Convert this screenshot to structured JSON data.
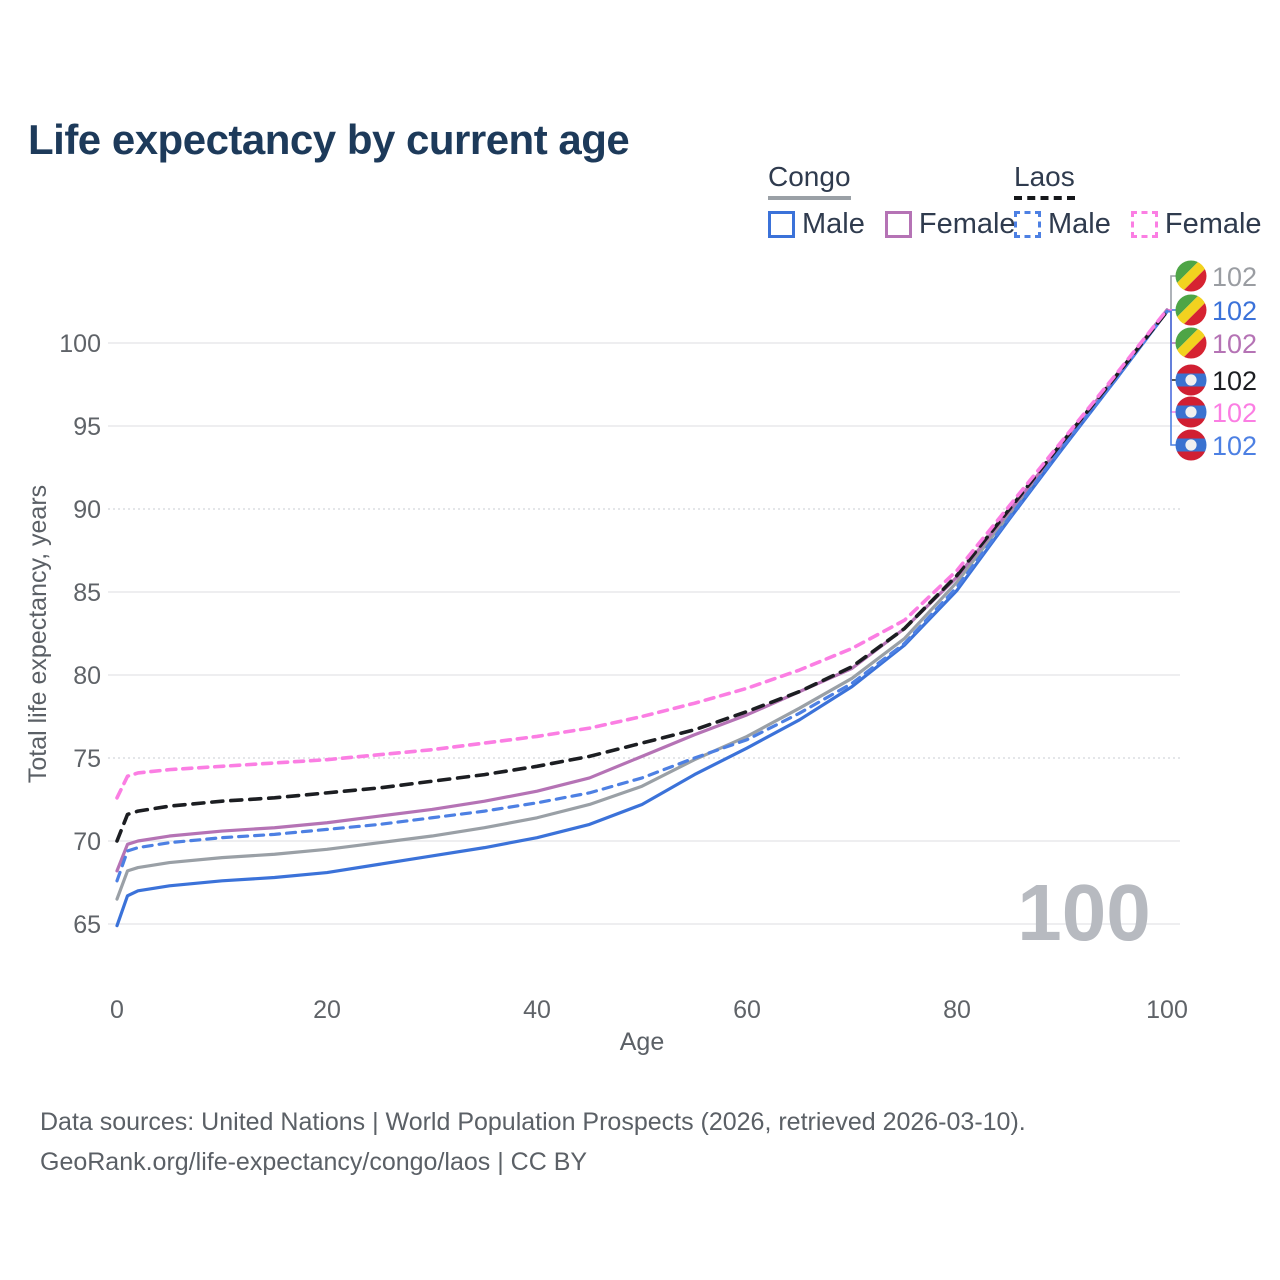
{
  "title": "Life expectancy by current age",
  "legend": {
    "groups": [
      {
        "label": "Congo",
        "line_style": "solid",
        "underline_color": "#9aa0a6",
        "items": [
          {
            "label": "Male",
            "color": "#3b72d9",
            "dashed": false
          },
          {
            "label": "Female",
            "color": "#b573b5",
            "dashed": false
          }
        ]
      },
      {
        "label": "Laos",
        "line_style": "dashed",
        "underline_color": "#15171a",
        "items": [
          {
            "label": "Male",
            "color": "#4d80e3",
            "dashed": true
          },
          {
            "label": "Female",
            "color": "#fb7ee3",
            "dashed": true
          }
        ]
      }
    ]
  },
  "watermark_age": "100",
  "footer": {
    "line1": "Data sources: United Nations | World Population Prospects (2026, retrieved 2026-03-10).",
    "line2": "GeoRank.org/life-expectancy/congo/laos | CC BY"
  },
  "flags": {
    "congo": {
      "green": "#4ea546",
      "yellow": "#f2d21f",
      "red": "#d62331"
    },
    "laos": {
      "red": "#d01f32",
      "blue": "#3a72d0",
      "white": "#f0f0f0"
    }
  },
  "chart_data": {
    "type": "line",
    "title": "Life expectancy by current age",
    "xlabel": "Age",
    "ylabel": "Total life expectancy, years",
    "xlim": [
      0,
      100
    ],
    "ylim": [
      63.5,
      103.5
    ],
    "xticks": [
      0,
      20,
      40,
      60,
      80,
      100
    ],
    "yticks": [
      65,
      70,
      75,
      80,
      85,
      90,
      95,
      100
    ],
    "grid": "horizontal",
    "legend_position": "top-right",
    "ages": [
      0,
      1,
      2,
      5,
      10,
      15,
      20,
      25,
      30,
      35,
      40,
      45,
      50,
      55,
      60,
      65,
      70,
      75,
      80,
      85,
      90,
      95,
      100
    ],
    "series": [
      {
        "name": "Congo Both sexes",
        "country": "Congo",
        "sex": "Both",
        "color": "#9aa0a6",
        "dashed": false,
        "end_label": "102",
        "end_label_color": "#9a9da2",
        "values": [
          66.5,
          68.2,
          68.4,
          68.7,
          69.0,
          69.2,
          69.5,
          69.9,
          70.3,
          70.8,
          71.4,
          72.2,
          73.3,
          74.9,
          76.3,
          78.0,
          79.8,
          82.2,
          85.6,
          89.7,
          93.8,
          97.8,
          101.9
        ]
      },
      {
        "name": "Congo Male",
        "country": "Congo",
        "sex": "Male",
        "color": "#3b72d9",
        "dashed": false,
        "end_label": "102",
        "end_label_color": "#3b72d9",
        "values": [
          64.9,
          66.7,
          67.0,
          67.3,
          67.6,
          67.8,
          68.1,
          68.6,
          69.1,
          69.6,
          70.2,
          71.0,
          72.2,
          74.0,
          75.6,
          77.3,
          79.3,
          81.8,
          85.1,
          89.4,
          93.6,
          97.7,
          101.9
        ]
      },
      {
        "name": "Congo Female",
        "country": "Congo",
        "sex": "Female",
        "color": "#b573b5",
        "dashed": false,
        "end_label": "102",
        "end_label_color": "#b573b5",
        "values": [
          68.2,
          69.8,
          70.0,
          70.3,
          70.6,
          70.8,
          71.1,
          71.5,
          71.9,
          72.4,
          73.0,
          73.8,
          75.1,
          76.4,
          77.6,
          79.0,
          80.4,
          82.8,
          85.9,
          89.9,
          93.9,
          97.9,
          102.0
        ]
      },
      {
        "name": "Laos Both sexes",
        "country": "Laos",
        "sex": "Both",
        "color": "#1c1e22",
        "dashed": true,
        "end_label": "102",
        "end_label_color": "#1c1e22",
        "values": [
          70.0,
          71.6,
          71.8,
          72.1,
          72.4,
          72.6,
          72.9,
          73.2,
          73.6,
          74.0,
          74.5,
          75.1,
          75.9,
          76.7,
          77.8,
          79.0,
          80.5,
          82.8,
          86.0,
          90.0,
          94.0,
          97.9,
          101.9
        ]
      },
      {
        "name": "Laos Female",
        "country": "Laos",
        "sex": "Female",
        "color": "#fb7ee3",
        "dashed": true,
        "end_label": "102",
        "end_label_color": "#fb7ee3",
        "values": [
          72.6,
          73.9,
          74.1,
          74.3,
          74.5,
          74.7,
          74.9,
          75.2,
          75.5,
          75.9,
          76.3,
          76.8,
          77.5,
          78.3,
          79.2,
          80.3,
          81.6,
          83.3,
          86.3,
          90.2,
          94.1,
          98.0,
          102.0
        ]
      },
      {
        "name": "Laos Male",
        "country": "Laos",
        "sex": "Male",
        "color": "#4d80e3",
        "dashed": true,
        "end_label": "102",
        "end_label_color": "#4d80e3",
        "values": [
          67.6,
          69.4,
          69.6,
          69.9,
          70.2,
          70.4,
          70.7,
          71.0,
          71.4,
          71.8,
          72.3,
          72.9,
          73.8,
          75.0,
          76.1,
          77.7,
          79.5,
          81.9,
          85.3,
          89.5,
          93.7,
          97.7,
          101.9
        ]
      }
    ]
  }
}
